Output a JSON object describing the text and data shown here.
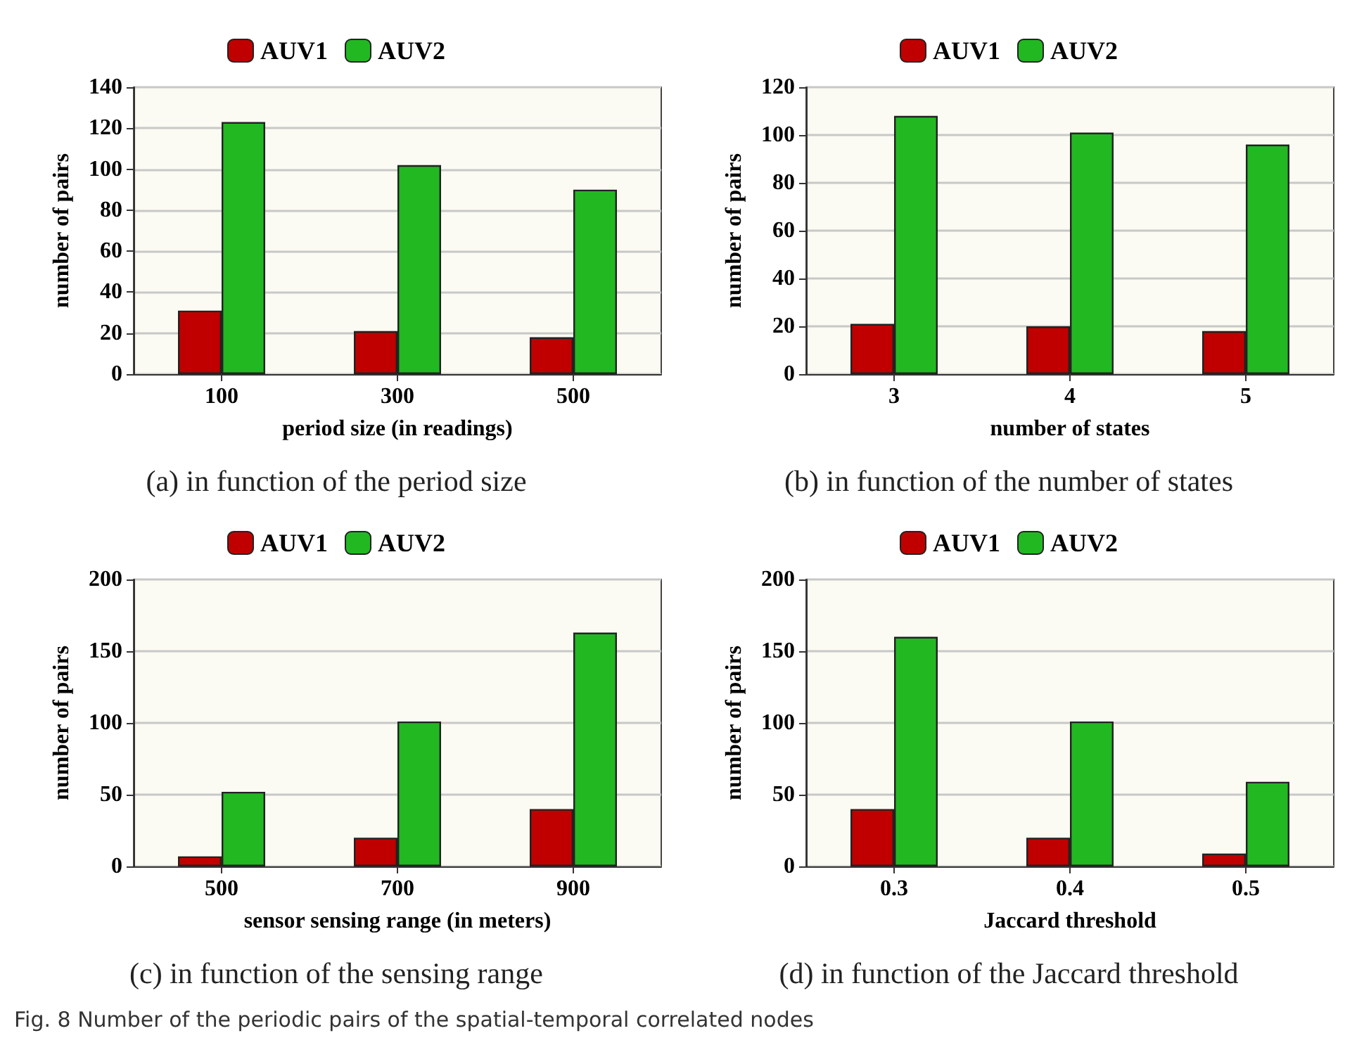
{
  "chart_data": [
    {
      "type": "bar",
      "categories": [
        "100",
        "300",
        "500"
      ],
      "xlabel": "period size (in readings)",
      "ylabel": "number of pairs",
      "ylim": [
        0,
        140
      ],
      "yticks": [
        0,
        20,
        40,
        60,
        80,
        100,
        120,
        140
      ],
      "grid": "y",
      "legend": "top",
      "series": [
        {
          "name": "AUV1",
          "color": "#c00000",
          "values": [
            31,
            21,
            18
          ]
        },
        {
          "name": "AUV2",
          "color": "#22b822",
          "values": [
            123,
            102,
            90
          ]
        }
      ],
      "annotations": [
        "(a) in function of the period size"
      ]
    },
    {
      "type": "bar",
      "categories": [
        "3",
        "4",
        "5"
      ],
      "xlabel": "number of states",
      "ylabel": "number of pairs",
      "ylim": [
        0,
        120
      ],
      "yticks": [
        0,
        20,
        40,
        60,
        80,
        100,
        120
      ],
      "grid": "y",
      "legend": "top",
      "series": [
        {
          "name": "AUV1",
          "color": "#c00000",
          "values": [
            21,
            20,
            18
          ]
        },
        {
          "name": "AUV2",
          "color": "#22b822",
          "values": [
            108,
            101,
            96
          ]
        }
      ],
      "annotations": [
        "(b) in function of the number of states"
      ]
    },
    {
      "type": "bar",
      "categories": [
        "500",
        "700",
        "900"
      ],
      "xlabel": "sensor sensing range (in meters)",
      "ylabel": "number of pairs",
      "ylim": [
        0,
        200
      ],
      "yticks": [
        0,
        50,
        100,
        150,
        200
      ],
      "grid": "y",
      "legend": "top",
      "series": [
        {
          "name": "AUV1",
          "color": "#c00000",
          "values": [
            7,
            20,
            40
          ]
        },
        {
          "name": "AUV2",
          "color": "#22b822",
          "values": [
            52,
            101,
            163
          ]
        }
      ],
      "annotations": [
        "(c) in function of the sensing range"
      ]
    },
    {
      "type": "bar",
      "categories": [
        "0.3",
        "0.4",
        "0.5"
      ],
      "xlabel": "Jaccard threshold",
      "ylabel": "number of pairs",
      "ylim": [
        0,
        200
      ],
      "yticks": [
        0,
        50,
        100,
        150,
        200
      ],
      "grid": "y",
      "legend": "top",
      "series": [
        {
          "name": "AUV1",
          "color": "#c00000",
          "values": [
            40,
            20,
            9
          ]
        },
        {
          "name": "AUV2",
          "color": "#22b822",
          "values": [
            160,
            101,
            59
          ]
        }
      ],
      "annotations": [
        "(d) in function of the Jaccard threshold",
        "Fig. 8 Number of the periodic pairs of the spatial-temporal correlated nodes"
      ]
    }
  ]
}
